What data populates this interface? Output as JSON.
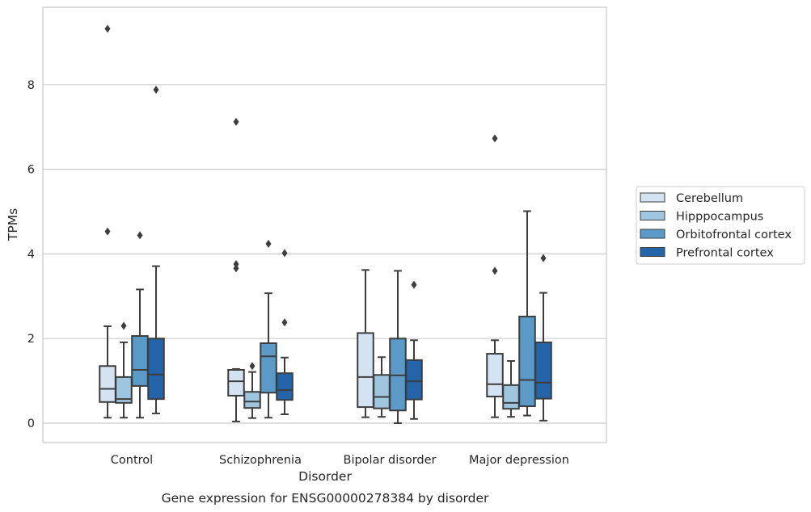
{
  "chart_data": {
    "type": "box",
    "title": "",
    "caption": "Gene expression for ENSG00000278384 by disorder",
    "xlabel": "Disorder",
    "ylabel": "TPMs",
    "ylim": [
      -0.45,
      9.9
    ],
    "yticks": [
      0,
      2,
      4,
      6,
      8
    ],
    "grid": "horizontal",
    "legend_position": "right",
    "categories": [
      "Control",
      "Schizophrenia",
      "Bipolar disorder",
      "Major depression"
    ],
    "series": [
      {
        "name": "Cerebellum",
        "color": "#d4e3f1",
        "boxes": [
          {
            "whisker_low": 0.13,
            "q1": 0.5,
            "median": 0.81,
            "q3": 1.35,
            "whisker_high": 2.29,
            "outliers": [
              4.53,
              9.32
            ]
          },
          {
            "whisker_low": 0.04,
            "q1": 0.65,
            "median": 0.99,
            "q3": 1.26,
            "whisker_high": 1.28,
            "outliers": [
              3.66,
              3.76,
              7.12
            ]
          },
          {
            "whisker_low": 0.14,
            "q1": 0.38,
            "median": 1.09,
            "q3": 2.13,
            "whisker_high": 3.62,
            "outliers": []
          },
          {
            "whisker_low": 0.14,
            "q1": 0.63,
            "median": 0.92,
            "q3": 1.64,
            "whisker_high": 1.96,
            "outliers": [
              3.6,
              6.73
            ]
          }
        ]
      },
      {
        "name": "Hipppocampus",
        "color": "#9ec6e0",
        "boxes": [
          {
            "whisker_low": 0.13,
            "q1": 0.48,
            "median": 0.57,
            "q3": 1.09,
            "whisker_high": 1.91,
            "outliers": [
              2.3
            ]
          },
          {
            "whisker_low": 0.12,
            "q1": 0.36,
            "median": 0.51,
            "q3": 0.74,
            "whisker_high": 1.21,
            "outliers": [
              1.35
            ]
          },
          {
            "whisker_low": 0.15,
            "q1": 0.35,
            "median": 0.62,
            "q3": 1.14,
            "whisker_high": 1.56,
            "outliers": []
          },
          {
            "whisker_low": 0.15,
            "q1": 0.34,
            "median": 0.48,
            "q3": 0.9,
            "whisker_high": 1.47,
            "outliers": []
          }
        ]
      },
      {
        "name": "Orbitofrontal cortex",
        "color": "#5a9ac9",
        "boxes": [
          {
            "whisker_low": 0.13,
            "q1": 0.88,
            "median": 1.26,
            "q3": 2.06,
            "whisker_high": 3.16,
            "outliers": [
              4.44
            ]
          },
          {
            "whisker_low": 0.13,
            "q1": 0.72,
            "median": 1.58,
            "q3": 1.89,
            "whisker_high": 3.07,
            "outliers": [
              4.24
            ]
          },
          {
            "whisker_low": 0.0,
            "q1": 0.3,
            "median": 1.13,
            "q3": 2.0,
            "whisker_high": 3.6,
            "outliers": []
          },
          {
            "whisker_low": 0.18,
            "q1": 0.4,
            "median": 1.02,
            "q3": 2.52,
            "whisker_high": 5.01,
            "outliers": []
          }
        ]
      },
      {
        "name": "Prefrontal cortex",
        "color": "#2464a8",
        "boxes": [
          {
            "whisker_low": 0.23,
            "q1": 0.57,
            "median": 1.15,
            "q3": 2.0,
            "whisker_high": 3.71,
            "outliers": [
              7.88
            ]
          },
          {
            "whisker_low": 0.21,
            "q1": 0.55,
            "median": 0.78,
            "q3": 1.18,
            "whisker_high": 1.55,
            "outliers": [
              2.38,
              4.02
            ]
          },
          {
            "whisker_low": 0.1,
            "q1": 0.56,
            "median": 0.99,
            "q3": 1.49,
            "whisker_high": 1.96,
            "outliers": [
              3.27
            ]
          },
          {
            "whisker_low": 0.06,
            "q1": 0.58,
            "median": 0.96,
            "q3": 1.91,
            "whisker_high": 3.08,
            "outliers": [
              3.9
            ]
          }
        ]
      }
    ]
  }
}
